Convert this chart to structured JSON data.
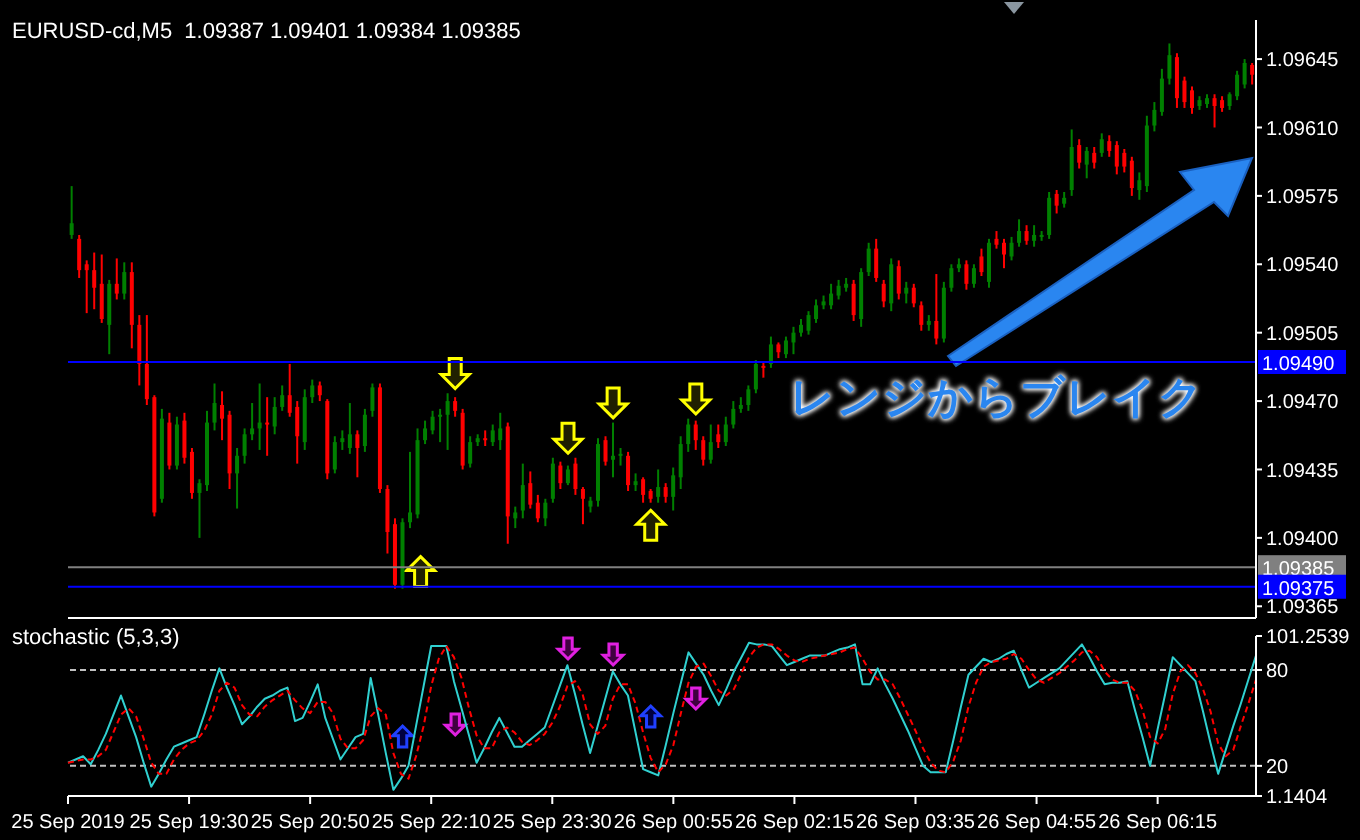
{
  "chart_data": [
    {
      "type": "candlestick",
      "title": "EURUSD-cd,M5  1.09387 1.09401 1.09384 1.09385",
      "annotations": [
        "レンジからブレイク"
      ],
      "tick_labels": "y",
      "categories": [
        null,
        null,
        null,
        null,
        null,
        null,
        null,
        null,
        null,
        null,
        null,
        null,
        null,
        null,
        null,
        null,
        null,
        null,
        null,
        null,
        null,
        null,
        null,
        null,
        null,
        null,
        null,
        null,
        null,
        null,
        null,
        null,
        null,
        null,
        null,
        null,
        null,
        null,
        null,
        null,
        null,
        null,
        null,
        null,
        null,
        null,
        null,
        null,
        null,
        null,
        null,
        null,
        null,
        null,
        null,
        null,
        null,
        null,
        null,
        null,
        null,
        null,
        null,
        null,
        null,
        null,
        null,
        null,
        null,
        null,
        null,
        null,
        null,
        null,
        null,
        null,
        null,
        null,
        null,
        null,
        null,
        null,
        null,
        null,
        null,
        null,
        null,
        null,
        null,
        null,
        null,
        null,
        null,
        null,
        null,
        null,
        null,
        null,
        null,
        null,
        null,
        null,
        null,
        null,
        null,
        null,
        null,
        null,
        null,
        null,
        null,
        null,
        null,
        null,
        null,
        null,
        null,
        null,
        null,
        null,
        null,
        null,
        null,
        null,
        null,
        null,
        null,
        null,
        null,
        null,
        null,
        null,
        null,
        null,
        null,
        null,
        null,
        null,
        null,
        null,
        null,
        null,
        null,
        null,
        null,
        null,
        null,
        null,
        null,
        null,
        null,
        null,
        null,
        null,
        null,
        null,
        null,
        null
      ],
      "ylim": [
        1.09359,
        1.09665
      ],
      "yticks": [
        1.09365,
        {
          "value": 1.094,
          "label": "1.09400"
        },
        1.09435,
        {
          "value": 1.0947,
          "label": "1.09470"
        },
        1.09505,
        {
          "value": 1.0954,
          "label": "1.09540"
        },
        1.09575,
        {
          "value": 1.0961,
          "label": "1.09610"
        },
        1.09645
      ],
      "ref_lines": [
        {
          "axis": "y",
          "value": 1.0949,
          "label": "1.09490",
          "color": "#0000ff"
        },
        {
          "axis": "y",
          "value": 1.09385,
          "label": "1.09385",
          "color": "#808080"
        },
        {
          "axis": "y",
          "value": 1.09375,
          "label": "1.09375",
          "color": "#0000ff"
        }
      ],
      "ohlc": [
        [
          1.09555,
          1.0958,
          1.09553,
          1.09561
        ],
        [
          1.09553,
          1.09555,
          1.09533,
          1.09537
        ],
        [
          1.0954,
          1.09542,
          1.09515,
          1.09537
        ],
        [
          1.09537,
          1.09546,
          1.09517,
          1.09528
        ],
        [
          1.0953,
          1.09545,
          1.0951,
          1.09512
        ],
        [
          1.09509,
          1.09532,
          1.09494,
          1.0953
        ],
        [
          1.0953,
          1.09543,
          1.09522,
          1.09525
        ],
        [
          1.09525,
          1.09541,
          1.09522,
          1.09536
        ],
        [
          1.09536,
          1.09541,
          1.09497,
          1.09509
        ],
        [
          1.09509,
          1.09514,
          1.09478,
          1.09489
        ],
        [
          1.09489,
          1.09514,
          1.09468,
          1.09471
        ],
        [
          1.09472,
          1.09473,
          1.09411,
          1.09413
        ],
        [
          1.0942,
          1.09466,
          1.09418,
          1.09461
        ],
        [
          1.09459,
          1.09464,
          1.09435,
          1.09437
        ],
        [
          1.09437,
          1.09462,
          1.09435,
          1.09458
        ],
        [
          1.0946,
          1.09464,
          1.09438,
          1.09441
        ],
        [
          1.09444,
          1.09446,
          1.0942,
          1.09423
        ],
        [
          1.09423,
          1.0943,
          1.094,
          1.09428
        ],
        [
          1.09427,
          1.09465,
          1.09424,
          1.09459
        ],
        [
          1.09459,
          1.09479,
          1.09455,
          1.09469
        ],
        [
          1.09468,
          1.09475,
          1.0945,
          1.09461
        ],
        [
          1.09463,
          1.09465,
          1.09425,
          1.09433
        ],
        [
          1.09433,
          1.09446,
          1.09415,
          1.09442
        ],
        [
          1.09442,
          1.09456,
          1.09438,
          1.09453
        ],
        [
          1.09453,
          1.09469,
          1.0945,
          1.09456
        ],
        [
          1.09456,
          1.09479,
          1.09445,
          1.09459
        ],
        [
          1.09459,
          1.09472,
          1.09442,
          1.09458
        ],
        [
          1.09457,
          1.09472,
          1.09453,
          1.09467
        ],
        [
          1.09467,
          1.09478,
          1.09465,
          1.09473
        ],
        [
          1.09473,
          1.09489,
          1.09462,
          1.09464
        ],
        [
          1.09467,
          1.0947,
          1.09438,
          1.09452
        ],
        [
          1.09449,
          1.09476,
          1.09445,
          1.09472
        ],
        [
          1.09472,
          1.09481,
          1.09469,
          1.09478
        ],
        [
          1.09478,
          1.0948,
          1.0947,
          1.09473
        ],
        [
          1.0947,
          1.09471,
          1.0943,
          1.09433
        ],
        [
          1.09435,
          1.09452,
          1.09433,
          1.09449
        ],
        [
          1.09449,
          1.09455,
          1.09445,
          1.09451
        ],
        [
          1.09446,
          1.09469,
          1.09443,
          1.09453
        ],
        [
          1.09453,
          1.09455,
          1.09431,
          1.09446
        ],
        [
          1.09447,
          1.09466,
          1.09444,
          1.09463
        ],
        [
          1.09465,
          1.09479,
          1.09462,
          1.09477
        ],
        [
          1.09477,
          1.09479,
          1.09423,
          1.09425
        ],
        [
          1.09425,
          1.09427,
          1.09392,
          1.09403
        ],
        [
          1.09407,
          1.0941,
          1.09374,
          1.09376
        ],
        [
          1.09376,
          1.0941,
          1.09374,
          1.09408
        ],
        [
          1.09408,
          1.09444,
          1.09405,
          1.09413
        ],
        [
          1.09412,
          1.09456,
          1.0941,
          1.0945
        ],
        [
          1.0945,
          1.0946,
          1.09448,
          1.09456
        ],
        [
          1.09455,
          1.09465,
          1.09453,
          1.09462
        ],
        [
          1.09462,
          1.09466,
          1.09449,
          1.09463
        ],
        [
          1.09463,
          1.09474,
          1.09445,
          1.0947
        ],
        [
          1.0947,
          1.09472,
          1.09462,
          1.09465
        ],
        [
          1.09464,
          1.09466,
          1.09435,
          1.09437
        ],
        [
          1.09438,
          1.09452,
          1.09436,
          1.09449
        ],
        [
          1.09449,
          1.09453,
          1.09447,
          1.09451
        ],
        [
          1.09451,
          1.09455,
          1.09447,
          1.0945
        ],
        [
          1.09449,
          1.09458,
          1.09447,
          1.09455
        ],
        [
          1.0945,
          1.09464,
          1.09445,
          1.09456
        ],
        [
          1.09457,
          1.09459,
          1.09397,
          1.09411
        ],
        [
          1.0941,
          1.09416,
          1.09405,
          1.09413
        ],
        [
          1.09414,
          1.09438,
          1.0941,
          1.09427
        ],
        [
          1.09428,
          1.09434,
          1.09415,
          1.09417
        ],
        [
          1.09418,
          1.09422,
          1.09408,
          1.0941
        ],
        [
          1.0941,
          1.0942,
          1.09406,
          1.09418
        ],
        [
          1.0942,
          1.09441,
          1.09418,
          1.09438
        ],
        [
          1.09437,
          1.09439,
          1.09425,
          1.09428
        ],
        [
          1.09428,
          1.09437,
          1.09427,
          1.09435
        ],
        [
          1.09438,
          1.09441,
          1.09422,
          1.09425
        ],
        [
          1.09425,
          1.09426,
          1.09407,
          1.0942
        ],
        [
          1.09416,
          1.09421,
          1.09413,
          1.09419
        ],
        [
          1.09419,
          1.09451,
          1.09416,
          1.09448
        ],
        [
          1.0945,
          1.09452,
          1.09437,
          1.09439
        ],
        [
          1.0944,
          1.09459,
          1.09431,
          1.09442
        ],
        [
          1.09442,
          1.09446,
          1.09437,
          1.09443
        ],
        [
          1.09442,
          1.09444,
          1.09424,
          1.09427
        ],
        [
          1.09427,
          1.09433,
          1.09424,
          1.09429
        ],
        [
          1.0943,
          1.09431,
          1.09418,
          1.09422
        ],
        [
          1.09424,
          1.09425,
          1.09418,
          1.0942
        ],
        [
          1.09421,
          1.09435,
          1.09418,
          1.09426
        ],
        [
          1.09426,
          1.09428,
          1.09418,
          1.09421
        ],
        [
          1.09421,
          1.09436,
          1.09414,
          1.09432
        ],
        [
          1.09431,
          1.09452,
          1.09425,
          1.09448
        ],
        [
          1.09448,
          1.09461,
          1.09444,
          1.09458
        ],
        [
          1.09458,
          1.0946,
          1.09445,
          1.0945
        ],
        [
          1.0945,
          1.09452,
          1.09437,
          1.0944
        ],
        [
          1.0944,
          1.09458,
          1.09438,
          1.09449
        ],
        [
          1.09453,
          1.09458,
          1.09446,
          1.09449
        ],
        [
          1.09449,
          1.09462,
          1.09447,
          1.09458
        ],
        [
          1.09458,
          1.0947,
          1.09456,
          1.09466
        ],
        [
          1.09466,
          1.09472,
          1.09464,
          1.09468
        ],
        [
          1.09468,
          1.09478,
          1.09465,
          1.09476
        ],
        [
          1.09476,
          1.09491,
          1.09474,
          1.09489
        ],
        [
          1.09488,
          1.0949,
          1.09482,
          1.09487
        ],
        [
          1.09489,
          1.09503,
          1.09487,
          1.09499
        ],
        [
          1.09499,
          1.095,
          1.09492,
          1.09495
        ],
        [
          1.09494,
          1.09503,
          1.09492,
          1.09501
        ],
        [
          1.095,
          1.09508,
          1.09494,
          1.09505
        ],
        [
          1.09505,
          1.09512,
          1.09503,
          1.09509
        ],
        [
          1.09506,
          1.09516,
          1.09504,
          1.09514
        ],
        [
          1.09512,
          1.09522,
          1.0951,
          1.09519
        ],
        [
          1.09519,
          1.09524,
          1.09517,
          1.09521
        ],
        [
          1.09519,
          1.0953,
          1.09517,
          1.09525
        ],
        [
          1.09524,
          1.09532,
          1.09522,
          1.09529
        ],
        [
          1.09528,
          1.09533,
          1.09526,
          1.0953
        ],
        [
          1.0953,
          1.09532,
          1.09511,
          1.09514
        ],
        [
          1.09512,
          1.09538,
          1.09508,
          1.09536
        ],
        [
          1.09536,
          1.09551,
          1.09534,
          1.09548
        ],
        [
          1.09548,
          1.09553,
          1.09531,
          1.09533
        ],
        [
          1.0953,
          1.09532,
          1.09518,
          1.09521
        ],
        [
          1.0952,
          1.09543,
          1.09516,
          1.0954
        ],
        [
          1.09539,
          1.09542,
          1.09522,
          1.09525
        ],
        [
          1.09525,
          1.09531,
          1.0952,
          1.09528
        ],
        [
          1.09528,
          1.0953,
          1.09518,
          1.0952
        ],
        [
          1.09519,
          1.09521,
          1.09506,
          1.09509
        ],
        [
          1.09509,
          1.09514,
          1.09506,
          1.09511
        ],
        [
          1.09511,
          1.09535,
          1.09499,
          1.09502
        ],
        [
          1.09502,
          1.09531,
          1.095,
          1.09528
        ],
        [
          1.09528,
          1.0954,
          1.09526,
          1.09538
        ],
        [
          1.09538,
          1.09543,
          1.09536,
          1.0954
        ],
        [
          1.0954,
          1.09542,
          1.09527,
          1.0953
        ],
        [
          1.0953,
          1.0954,
          1.09528,
          1.09538
        ],
        [
          1.09544,
          1.09548,
          1.09534,
          1.09536
        ],
        [
          1.09531,
          1.09553,
          1.09528,
          1.09551
        ],
        [
          1.09553,
          1.09557,
          1.09548,
          1.0955
        ],
        [
          1.09551,
          1.09553,
          1.09538,
          1.09545
        ],
        [
          1.09544,
          1.09554,
          1.09542,
          1.09551
        ],
        [
          1.09551,
          1.09563,
          1.09549,
          1.09557
        ],
        [
          1.09557,
          1.0956,
          1.0955,
          1.09552
        ],
        [
          1.09552,
          1.0956,
          1.09549,
          1.09555
        ],
        [
          1.09554,
          1.09557,
          1.09552,
          1.09555
        ],
        [
          1.09555,
          1.09577,
          1.09553,
          1.09574
        ],
        [
          1.09576,
          1.09578,
          1.09566,
          1.0957
        ],
        [
          1.09571,
          1.09577,
          1.09569,
          1.09574
        ],
        [
          1.09578,
          1.09609,
          1.09575,
          1.096
        ],
        [
          1.09601,
          1.09604,
          1.09589,
          1.09592
        ],
        [
          1.09591,
          1.096,
          1.09584,
          1.09598
        ],
        [
          1.09597,
          1.096,
          1.09589,
          1.09592
        ],
        [
          1.09597,
          1.09607,
          1.09595,
          1.09604
        ],
        [
          1.09603,
          1.09606,
          1.09595,
          1.09598
        ],
        [
          1.09601,
          1.09603,
          1.09586,
          1.0959
        ],
        [
          1.09597,
          1.09599,
          1.09587,
          1.0959
        ],
        [
          1.09593,
          1.09595,
          1.09575,
          1.09579
        ],
        [
          1.09578,
          1.09587,
          1.09573,
          1.09583
        ],
        [
          1.0958,
          1.09616,
          1.09577,
          1.09611
        ],
        [
          1.09611,
          1.09623,
          1.09608,
          1.09619
        ],
        [
          1.09618,
          1.0964,
          1.09616,
          1.09635
        ],
        [
          1.09635,
          1.09653,
          1.09632,
          1.09647
        ],
        [
          1.09646,
          1.09648,
          1.0962,
          1.09625
        ],
        [
          1.09634,
          1.09636,
          1.0962,
          1.09623
        ],
        [
          1.09629,
          1.09631,
          1.09617,
          1.0962
        ],
        [
          1.09621,
          1.09626,
          1.09619,
          1.09624
        ],
        [
          1.09622,
          1.09627,
          1.0962,
          1.09625
        ],
        [
          1.09625,
          1.09627,
          1.0961,
          1.09621
        ],
        [
          1.09624,
          1.09626,
          1.09618,
          1.0962
        ],
        [
          1.09621,
          1.09628,
          1.09619,
          1.09627
        ],
        [
          1.09626,
          1.09639,
          1.09624,
          1.09637
        ],
        [
          1.09632,
          1.09645,
          1.0963,
          1.09643
        ],
        [
          1.09642,
          1.09643,
          1.09632,
          1.09637
        ]
      ]
    },
    {
      "type": "line",
      "title": "stochastic (5,3,3)",
      "categories": [
        "25 Sep 2019",
        null,
        null,
        null,
        null,
        null,
        null,
        null,
        null,
        null,
        null,
        null,
        null,
        null,
        null,
        null,
        "25 Sep 19:30",
        null,
        null,
        null,
        null,
        null,
        null,
        null,
        null,
        null,
        null,
        null,
        null,
        null,
        null,
        null,
        "25 Sep 20:50",
        null,
        null,
        null,
        null,
        null,
        null,
        null,
        null,
        null,
        null,
        null,
        null,
        null,
        null,
        null,
        "25 Sep 22:10",
        null,
        null,
        null,
        null,
        null,
        null,
        null,
        null,
        null,
        null,
        null,
        null,
        null,
        null,
        null,
        "25 Sep 23:30",
        null,
        null,
        null,
        null,
        null,
        null,
        null,
        null,
        null,
        null,
        null,
        null,
        null,
        null,
        null,
        "26 Sep 00:55",
        null,
        null,
        null,
        null,
        null,
        null,
        null,
        null,
        null,
        null,
        null,
        null,
        null,
        null,
        null,
        "26 Sep 02:15",
        null,
        null,
        null,
        null,
        null,
        null,
        null,
        null,
        null,
        null,
        null,
        null,
        null,
        null,
        null,
        "26 Sep 03:35",
        null,
        null,
        null,
        null,
        null,
        null,
        null,
        null,
        null,
        null,
        null,
        null,
        null,
        null,
        null,
        "26 Sep 04:55",
        null,
        null,
        null,
        null,
        null,
        null,
        null,
        null,
        null,
        null,
        null,
        null,
        null,
        null,
        null,
        "26 Sep 06:15",
        null,
        null,
        null,
        null,
        null,
        null,
        null,
        null,
        null,
        null,
        null,
        null,
        null
      ],
      "ylim": [
        1.1404,
        101.2539
      ],
      "yticks": [
        1.1404,
        20,
        80,
        101.2539
      ],
      "ref_lines": [
        {
          "axis": "y",
          "value": 80,
          "color": "#c0c0c0",
          "line_style": "dashed"
        },
        {
          "axis": "y",
          "value": 20,
          "color": "#c0c0c0",
          "line_style": "dashed"
        }
      ],
      "series": [
        {
          "color": "#30d0d0",
          "line_style": "solid",
          "values": [
            22,
            24,
            26,
            21,
            30,
            40,
            52,
            64,
            51,
            38,
            22,
            7,
            15,
            24,
            32,
            34,
            36,
            38,
            52,
            67,
            81,
            69,
            58,
            46,
            51,
            57,
            62,
            64,
            67,
            69,
            48,
            50,
            60,
            71,
            50,
            37,
            24,
            31,
            38,
            40,
            75,
            52,
            28,
            5,
            12,
            20,
            45,
            70,
            95,
            95,
            95,
            73,
            56,
            39,
            22,
            31,
            41,
            50,
            41,
            32,
            32,
            36,
            40,
            44,
            57,
            70,
            83,
            65,
            46,
            28,
            45,
            62,
            79,
            71,
            64,
            41,
            18,
            16,
            14,
            33,
            53,
            72,
            91,
            84,
            77,
            67,
            58,
            68,
            79,
            88,
            97,
            96,
            96,
            95,
            89,
            83,
            85,
            87,
            89,
            89,
            89,
            91,
            93,
            94,
            96,
            71,
            71,
            81,
            71,
            62,
            52,
            42,
            31,
            20,
            16,
            16,
            16,
            36,
            57,
            77,
            82,
            87,
            85,
            87,
            90,
            92,
            80,
            69,
            72,
            75,
            78,
            81,
            86,
            91,
            96,
            88,
            79,
            71,
            72,
            72,
            73,
            55,
            38,
            20,
            43,
            65,
            88,
            83,
            78,
            73,
            54,
            34,
            15,
            30,
            45,
            59,
            74,
            89
          ]
        },
        {
          "color": "#ff0000",
          "line_style": "dashed",
          "values": [
            22,
            23,
            24,
            24,
            26,
            30,
            41,
            52,
            56,
            51,
            37,
            22,
            15,
            15,
            24,
            30,
            34,
            36,
            42,
            52,
            67,
            72,
            69,
            58,
            52,
            51,
            57,
            61,
            64,
            67,
            61,
            56,
            53,
            60,
            60,
            53,
            37,
            31,
            31,
            36,
            51,
            56,
            52,
            28,
            15,
            12,
            26,
            45,
            70,
            87,
            95,
            88,
            75,
            56,
            39,
            31,
            31,
            41,
            44,
            41,
            35,
            33,
            36,
            40,
            47,
            57,
            70,
            73,
            65,
            46,
            40,
            45,
            62,
            71,
            71,
            59,
            41,
            25,
            16,
            21,
            33,
            53,
            72,
            82,
            84,
            76,
            67,
            64,
            68,
            78,
            88,
            94,
            96,
            96,
            93,
            89,
            86,
            85,
            87,
            88,
            89,
            90,
            91,
            93,
            94,
            87,
            79,
            74,
            74,
            71,
            62,
            52,
            42,
            31,
            22,
            17,
            16,
            23,
            36,
            57,
            72,
            82,
            85,
            86,
            87,
            90,
            87,
            80,
            74,
            72,
            75,
            78,
            82,
            86,
            91,
            92,
            88,
            79,
            74,
            72,
            72,
            67,
            55,
            38,
            34,
            43,
            65,
            79,
            83,
            78,
            68,
            54,
            34,
            26,
            30,
            45,
            59,
            74
          ]
        }
      ]
    }
  ]
}
